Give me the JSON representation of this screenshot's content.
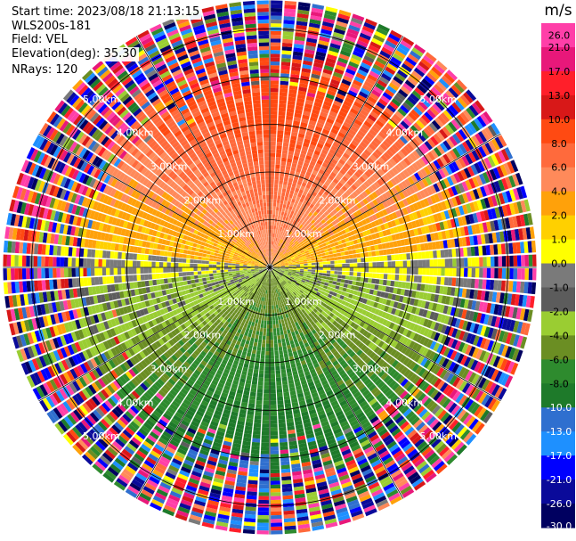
{
  "header": {
    "start_time": "Start time: 2023/08/18 21:13:15",
    "instrument": "WLS200s-181",
    "field": "Field: VEL",
    "elevation": "Elevation(deg): 35.30",
    "nrays": "NRays: 120"
  },
  "colorbar": {
    "unit": "m/s",
    "ticks": [
      "26.0",
      "21.0",
      "17.0",
      "13.0",
      "10.0",
      "8.0",
      "6.0",
      "4.0",
      "2.0",
      "1.0",
      "0.0",
      "-1.0",
      "-2.0",
      "-4.0",
      "-6.0",
      "-8.0",
      "-10.0",
      "-13.0",
      "-17.0",
      "-21.0",
      "-26.0",
      "-30.0"
    ],
    "bands": [
      "#ff3fa8",
      "#e8187a",
      "#ff1f2a",
      "#d81818",
      "#ff4a12",
      "#ff6a3c",
      "#ff8a5a",
      "#ffa10a",
      "#ffd000",
      "#ffff00",
      "#7a7a7a",
      "#5c5c5c",
      "#9acd32",
      "#6b8e23",
      "#2e8b2e",
      "#1e7a2a",
      "#2f6fcf",
      "#1e90ff",
      "#0000ff",
      "#0a0a9a",
      "#000060"
    ]
  },
  "chart_data": {
    "type": "polar_ppi",
    "field": "VEL",
    "unit": "m/s",
    "n_rays": 120,
    "elevation_deg": 35.3,
    "range_ring_labels": [
      "1.00km",
      "2.00km",
      "3.00km",
      "4.00km",
      "5.00km"
    ],
    "range_rings_km": [
      1,
      2,
      3,
      4,
      5
    ],
    "max_range_km": 5.6,
    "color_scale_min": -30.0,
    "color_scale_max": 26.0,
    "sector_pattern": {
      "north_half": "positive velocities (orange/red, 3–10 m/s), yellow near east-west axis",
      "south_half": "negative velocities (green/blue, -4 to -10 m/s)",
      "east_west_axis": "near zero (gray)",
      "outer_ranges": "noisy mixed values"
    }
  }
}
